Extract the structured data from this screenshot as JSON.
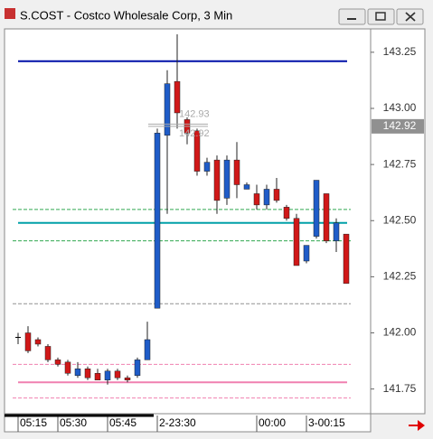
{
  "chart_data": {
    "type": "candlestick",
    "title": "S.COST - Costco Wholesale Corp, 3 Min",
    "categories": [
      "05:15",
      null,
      null,
      null,
      "05:30",
      null,
      null,
      null,
      null,
      "05:45",
      null,
      null,
      null,
      null,
      "2-23:30",
      null,
      null,
      null,
      null,
      null,
      null,
      null,
      null,
      null,
      "00:00",
      null,
      null,
      null,
      null,
      "3-00:15",
      null,
      null,
      null,
      null
    ],
    "open": [
      141.98,
      142.0,
      141.97,
      141.94,
      141.88,
      141.87,
      141.81,
      141.84,
      141.82,
      141.79,
      141.83,
      141.8,
      141.81,
      141.88,
      142.11,
      142.88,
      143.12,
      142.95,
      142.9,
      142.72,
      142.77,
      142.6,
      142.77,
      142.64,
      142.62,
      142.57,
      142.64,
      142.56,
      142.51,
      142.32,
      142.43,
      142.62,
      142.41,
      142.44
    ],
    "high": [
      142.0,
      142.03,
      141.98,
      141.95,
      141.89,
      141.88,
      141.87,
      141.85,
      141.84,
      141.84,
      141.84,
      141.81,
      141.89,
      142.05,
      142.91,
      143.17,
      143.33,
      142.96,
      142.91,
      142.78,
      142.79,
      142.79,
      142.85,
      142.67,
      142.66,
      142.66,
      142.69,
      142.57,
      142.53,
      142.39,
      142.68,
      142.62,
      142.51,
      142.44
    ],
    "low": [
      141.95,
      141.91,
      141.94,
      141.87,
      141.85,
      141.81,
      141.8,
      141.79,
      141.79,
      141.77,
      141.79,
      141.78,
      141.8,
      141.88,
      142.11,
      142.53,
      142.91,
      142.84,
      142.7,
      142.7,
      142.53,
      142.57,
      142.6,
      142.64,
      142.55,
      142.55,
      142.58,
      142.5,
      142.3,
      142.31,
      142.42,
      142.4,
      142.36,
      142.22
    ],
    "close": [
      141.98,
      141.92,
      141.95,
      141.88,
      141.86,
      141.82,
      141.84,
      141.8,
      141.79,
      141.83,
      141.8,
      141.79,
      141.88,
      141.97,
      142.89,
      143.11,
      142.98,
      142.89,
      142.72,
      142.76,
      142.59,
      142.77,
      142.66,
      142.66,
      142.57,
      142.64,
      142.59,
      142.51,
      142.3,
      142.39,
      142.68,
      142.41,
      142.49,
      142.22
    ],
    "up_color": "#1f5cc8",
    "down_color": "#d01818",
    "doji_color": "#000000",
    "ylim": [
      141.64,
      143.35
    ],
    "yticks": [
      {
        "value": 141.75,
        "label": "141.75"
      },
      {
        "value": 142,
        "label": "142.00"
      },
      {
        "value": 142.25,
        "label": "142.25"
      },
      {
        "value": 142.5,
        "label": "142.50"
      },
      {
        "value": 142.75,
        "label": "142.75"
      },
      {
        "value": 143,
        "label": "143.00"
      },
      {
        "value": 143.25,
        "label": "143.25"
      }
    ],
    "levels": [
      {
        "value": 143.21,
        "color": "#0010a8",
        "style": "solid"
      },
      {
        "value": 142.49,
        "color": "#00a0a8",
        "style": "solid"
      },
      {
        "value": 142.55,
        "color": "#30a850",
        "style": "dashed"
      },
      {
        "value": 142.41,
        "color": "#30a850",
        "style": "dashed"
      },
      {
        "value": 142.13,
        "color": "#909090",
        "style": "dashed"
      },
      {
        "value": 141.86,
        "color": "#f080b0",
        "style": "dashed"
      },
      {
        "value": 141.78,
        "color": "#f080b0",
        "style": "solid"
      },
      {
        "value": 141.71,
        "color": "#f080b0",
        "style": "dashed"
      }
    ],
    "annotations": [
      {
        "value": 142.93,
        "label": "142.93"
      },
      {
        "value": 142.92,
        "label": "142.92"
      }
    ],
    "last_price": {
      "value": 142.92,
      "label": "142.92"
    }
  }
}
